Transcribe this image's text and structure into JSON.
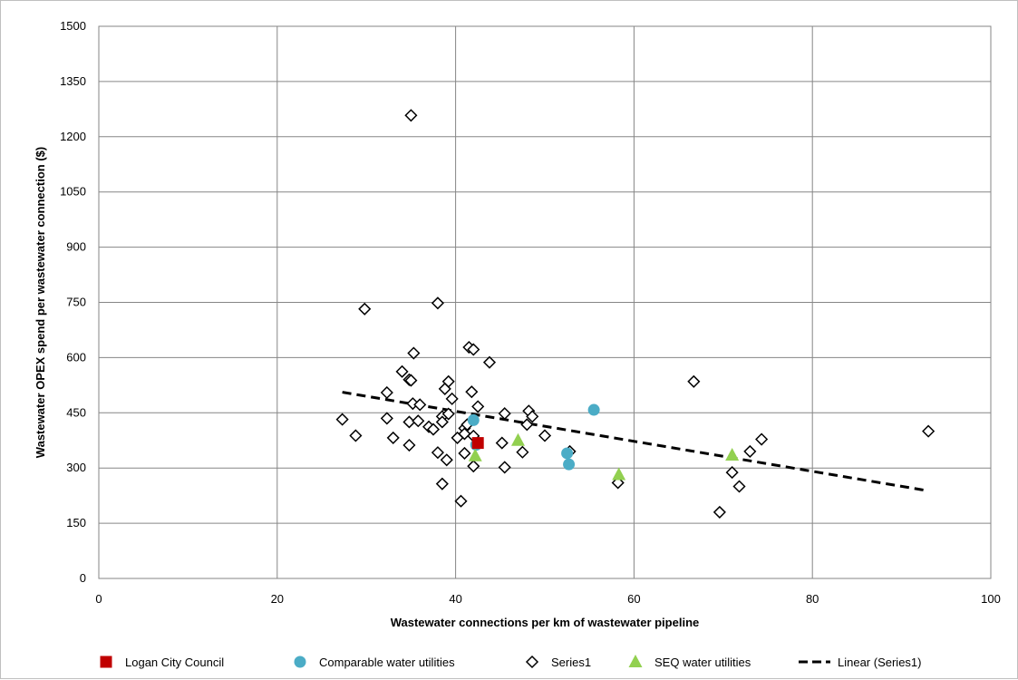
{
  "chart_data": {
    "type": "scatter",
    "xlabel": "Wastewater connections per km of wastewater pipeline",
    "ylabel": "Wastewater OPEX spend per wastewater connection ($)",
    "xlim": [
      0,
      100
    ],
    "ylim": [
      0,
      1500
    ],
    "xticks": [
      0,
      20,
      40,
      60,
      80,
      100
    ],
    "yticks": [
      0,
      150,
      300,
      450,
      600,
      750,
      900,
      1050,
      1200,
      1350,
      1500
    ],
    "grid": true,
    "legend_position": "bottom",
    "series": [
      {
        "name": "Logan City Council",
        "marker": "square",
        "color": "#c00000",
        "points": [
          [
            42.5,
            368
          ]
        ]
      },
      {
        "name": "Comparable water utilities",
        "marker": "circle",
        "color": "#4bacc6",
        "points": [
          [
            42.0,
            430
          ],
          [
            55.5,
            458
          ],
          [
            52.5,
            340
          ],
          [
            52.7,
            310
          ],
          [
            42.3,
            363
          ]
        ]
      },
      {
        "name": "Series1",
        "marker": "diamond-open",
        "color": "#000000",
        "points": [
          [
            35.0,
            1258
          ],
          [
            29.8,
            732
          ],
          [
            38.0,
            748
          ],
          [
            41.5,
            628
          ],
          [
            42.0,
            622
          ],
          [
            35.3,
            612
          ],
          [
            43.8,
            587
          ],
          [
            34.0,
            562
          ],
          [
            34.8,
            540
          ],
          [
            35.0,
            538
          ],
          [
            39.2,
            535
          ],
          [
            38.8,
            515
          ],
          [
            32.3,
            505
          ],
          [
            41.8,
            507
          ],
          [
            39.6,
            488
          ],
          [
            35.2,
            475
          ],
          [
            36.0,
            472
          ],
          [
            42.5,
            467
          ],
          [
            45.5,
            448
          ],
          [
            48.2,
            455
          ],
          [
            48.6,
            440
          ],
          [
            38.5,
            440
          ],
          [
            39.2,
            447
          ],
          [
            27.3,
            432
          ],
          [
            32.3,
            435
          ],
          [
            34.8,
            425
          ],
          [
            35.8,
            428
          ],
          [
            37.0,
            412
          ],
          [
            37.5,
            405
          ],
          [
            38.5,
            425
          ],
          [
            41.0,
            408
          ],
          [
            41.3,
            418
          ],
          [
            41.0,
            393
          ],
          [
            40.2,
            382
          ],
          [
            42.0,
            387
          ],
          [
            48.0,
            418
          ],
          [
            50.0,
            388
          ],
          [
            28.8,
            388
          ],
          [
            33.0,
            382
          ],
          [
            34.8,
            362
          ],
          [
            45.2,
            368
          ],
          [
            38.0,
            342
          ],
          [
            39.0,
            322
          ],
          [
            41.0,
            340
          ],
          [
            42.0,
            305
          ],
          [
            47.5,
            343
          ],
          [
            45.5,
            302
          ],
          [
            38.5,
            257
          ],
          [
            40.6,
            210
          ],
          [
            52.8,
            345
          ],
          [
            66.7,
            535
          ],
          [
            93.0,
            400
          ],
          [
            74.3,
            378
          ],
          [
            73.0,
            345
          ],
          [
            71.0,
            288
          ],
          [
            71.8,
            250
          ],
          [
            69.6,
            180
          ],
          [
            58.2,
            260
          ]
        ]
      },
      {
        "name": "SEQ water utilities",
        "marker": "triangle",
        "color": "#92d050",
        "points": [
          [
            42.2,
            333
          ],
          [
            47.0,
            375
          ],
          [
            58.3,
            282
          ],
          [
            71.0,
            335
          ]
        ]
      }
    ],
    "trendline": {
      "name": "Linear (Series1)",
      "style": "dashed",
      "color": "#000000",
      "points": [
        [
          27.3,
          506
        ],
        [
          93.0,
          238
        ]
      ]
    }
  }
}
